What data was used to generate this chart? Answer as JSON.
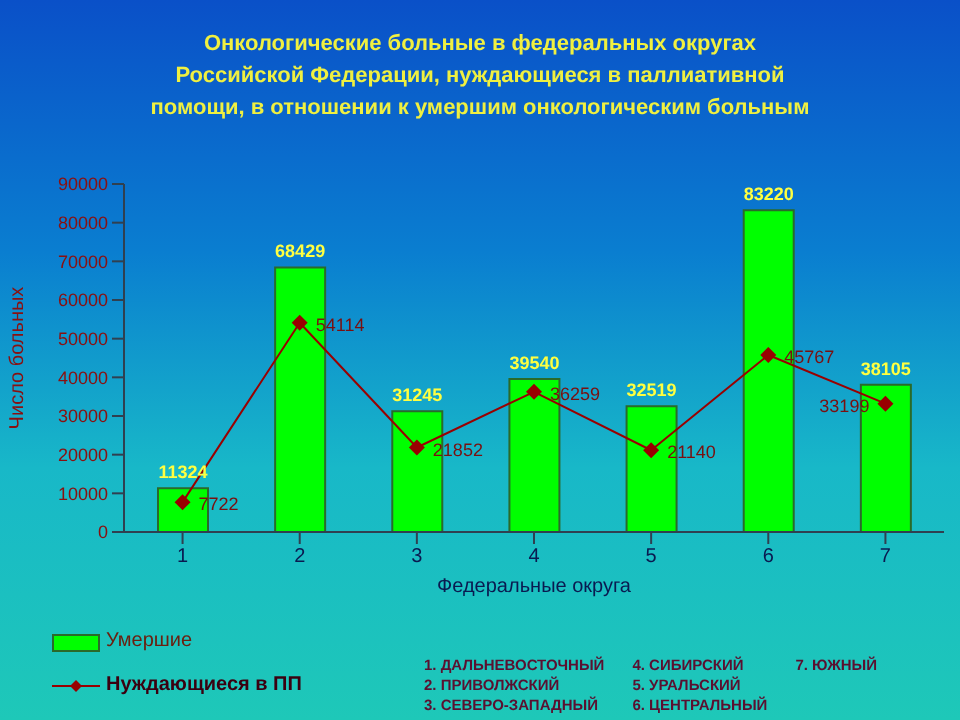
{
  "chart_data": {
    "type": "bar",
    "title": "Онкологические больные в федеральных округах Российской Федерации, нуждающиеся в паллиативной помощи, в отношении к умершим онкологическим больным",
    "xlabel": "Федеральные округа",
    "ylabel": "Число больных",
    "categories": [
      "1",
      "2",
      "3",
      "4",
      "5",
      "6",
      "7"
    ],
    "series": [
      {
        "name": "Умершие",
        "color": "#00ff00",
        "values": [
          11324,
          68429,
          31245,
          39540,
          32519,
          83220,
          38105
        ]
      },
      {
        "name": "Нуждающиеся в ПП",
        "type": "line",
        "color": "#990000",
        "marker": "diamond",
        "values": [
          7722,
          54114,
          21852,
          36259,
          21140,
          45767,
          33199
        ]
      }
    ],
    "ylim": [
      0,
      90000
    ],
    "yticks": [
      0,
      10000,
      20000,
      30000,
      40000,
      50000,
      60000,
      70000,
      80000,
      90000
    ],
    "grid": false,
    "legend": "bottom left",
    "data_labels": true,
    "annotations": [
      "1. ДАЛЬНЕВОСТОЧНЫЙ",
      "2. ПРИВОЛЖСКИЙ",
      "3. СЕВЕРО-ЗАПАДНЫЙ",
      "4. СИБИРСКИЙ",
      "5. УРАЛЬСКИЙ",
      "6. ЦЕНТРАЛЬНЫЙ",
      "7. ЮЖНЫЙ"
    ]
  }
}
